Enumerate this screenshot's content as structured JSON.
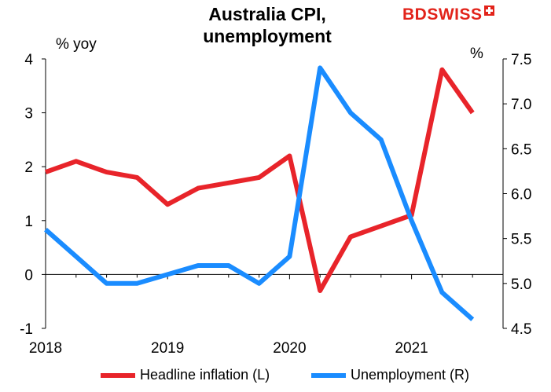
{
  "header": {
    "title_line1": "Australia CPI,",
    "title_line2": "unemployment",
    "logo_bd": "BD",
    "logo_swiss": "SWISS"
  },
  "axes": {
    "left_unit": "% yoy",
    "right_unit": "%"
  },
  "chart_data": {
    "type": "line",
    "x_ticks": [
      "2018",
      "2019",
      "2020",
      "2021"
    ],
    "x": [
      "2018Q1",
      "2018Q2",
      "2018Q3",
      "2018Q4",
      "2019Q1",
      "2019Q2",
      "2019Q3",
      "2019Q4",
      "2020Q1",
      "2020Q2",
      "2020Q3",
      "2020Q4",
      "2021Q1",
      "2021Q2",
      "2021Q3"
    ],
    "left_axis": {
      "ylim": [
        -1,
        4
      ],
      "ticks": [
        "-1",
        "0",
        "1",
        "2",
        "3",
        "4"
      ]
    },
    "right_axis": {
      "ylim": [
        4.5,
        7.5
      ],
      "ticks": [
        "4.5",
        "5.0",
        "5.5",
        "6.0",
        "6.5",
        "7.0",
        "7.5"
      ]
    },
    "grid": false,
    "legend_position": "bottom",
    "series": [
      {
        "name": "Headline inflation (L)",
        "axis": "left",
        "color": "#e8242a",
        "values": [
          1.9,
          2.1,
          1.9,
          1.8,
          1.3,
          1.6,
          1.7,
          1.8,
          2.2,
          -0.3,
          0.7,
          0.9,
          1.1,
          3.8,
          3.0
        ]
      },
      {
        "name": "Unemployment (R)",
        "axis": "right",
        "color": "#1a8cff",
        "values": [
          5.6,
          5.3,
          5.0,
          5.0,
          5.1,
          5.2,
          5.2,
          5.0,
          5.3,
          7.4,
          6.9,
          6.6,
          5.7,
          4.9,
          4.6
        ]
      }
    ]
  }
}
